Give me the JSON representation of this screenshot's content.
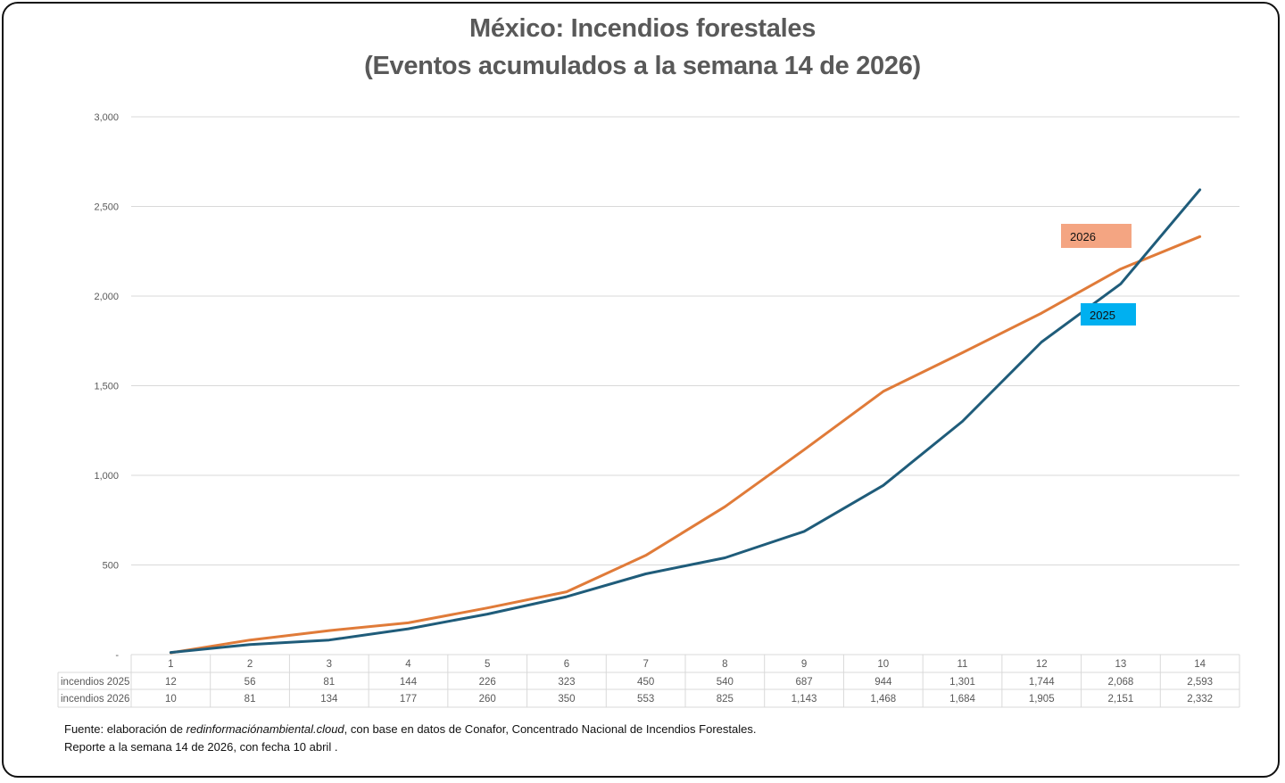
{
  "chart_data": {
    "type": "line",
    "title": "México: Incendios forestales",
    "subtitle": "(Eventos acumulados a la semana 14 de 2026)",
    "xlabel": "",
    "ylabel": "",
    "categories": [
      "1",
      "2",
      "3",
      "4",
      "5",
      "6",
      "7",
      "8",
      "9",
      "10",
      "11",
      "12",
      "13",
      "14"
    ],
    "ylim": [
      0,
      3000
    ],
    "yticks": [
      0,
      500,
      1000,
      1500,
      2000,
      2500,
      3000
    ],
    "ytick_labels": [
      "-",
      "500",
      "1,000",
      "1,500",
      "2,000",
      "2,500",
      "3,000"
    ],
    "grid": true,
    "series": [
      {
        "name": "incendios 2025",
        "label": "2025",
        "color": "#1F5C7A",
        "label_bg": "#00B0F0",
        "values": [
          12,
          56,
          81,
          144,
          226,
          323,
          450,
          540,
          687,
          944,
          1301,
          1744,
          2068,
          2593
        ],
        "display": [
          "12",
          "56",
          "81",
          "144",
          "226",
          "323",
          "450",
          "540",
          "687",
          "944",
          "1,301",
          "1,744",
          "2,068",
          "2,593"
        ]
      },
      {
        "name": "incendios 2026",
        "label": "2026",
        "color": "#E07B39",
        "label_bg": "#F4A582",
        "values": [
          10,
          81,
          134,
          177,
          260,
          350,
          553,
          825,
          1143,
          1468,
          1684,
          1905,
          2151,
          2332
        ],
        "display": [
          "10",
          "81",
          "134",
          "177",
          "260",
          "350",
          "553",
          "825",
          "1,143",
          "1,468",
          "1,684",
          "1,905",
          "2,151",
          "2,332"
        ]
      }
    ],
    "legend": "data-table"
  },
  "footer": {
    "line1_prefix": "Fuente: elaboración de ",
    "line1_italic": "redinformaciónambiental.cloud",
    "line1_suffix": ", con base en datos de Conafor, Concentrado Nacional de Incendios Forestales.",
    "line2": "Reporte a la semana 14 de 2026, con fecha 10 abril ."
  }
}
